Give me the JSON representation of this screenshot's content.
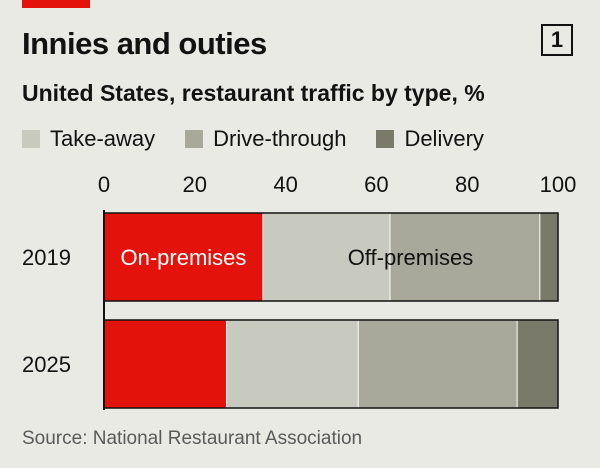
{
  "header": {
    "chart_number": "1",
    "title": "Innies and outies",
    "subtitle": "United States, restaurant traffic by type, %"
  },
  "legend": [
    {
      "label": "Take-away",
      "color": "#c8c9bf"
    },
    {
      "label": "Drive-through",
      "color": "#a8a99b"
    },
    {
      "label": "Delivery",
      "color": "#7a7a6b"
    }
  ],
  "source": "Source: National Restaurant Association",
  "colors": {
    "on_premises": "#e3120b",
    "grid": "#ffffff",
    "axis": "#121212"
  },
  "chart_data": {
    "type": "bar",
    "orientation": "horizontal",
    "stacked": true,
    "xlim": [
      0,
      100
    ],
    "xticks": [
      "0",
      "20",
      "40",
      "60",
      "80",
      "100"
    ],
    "categories": [
      "2019",
      "2025"
    ],
    "series": [
      {
        "name": "On-premises",
        "color": "#e3120b",
        "values": [
          35,
          27
        ]
      },
      {
        "name": "Take-away",
        "color": "#c8c9bf",
        "values": [
          28,
          29
        ]
      },
      {
        "name": "Drive-through",
        "color": "#a8a99b",
        "values": [
          33,
          35
        ]
      },
      {
        "name": "Delivery",
        "color": "#7a7a6b",
        "values": [
          4,
          9
        ]
      }
    ],
    "annotations": [
      {
        "text": "On-premises",
        "category": "2019",
        "series": "On-premises",
        "color": "#ffffff"
      },
      {
        "text": "Off-premises",
        "category": "2019",
        "span": [
          35,
          100
        ],
        "color": "#121212"
      }
    ]
  }
}
